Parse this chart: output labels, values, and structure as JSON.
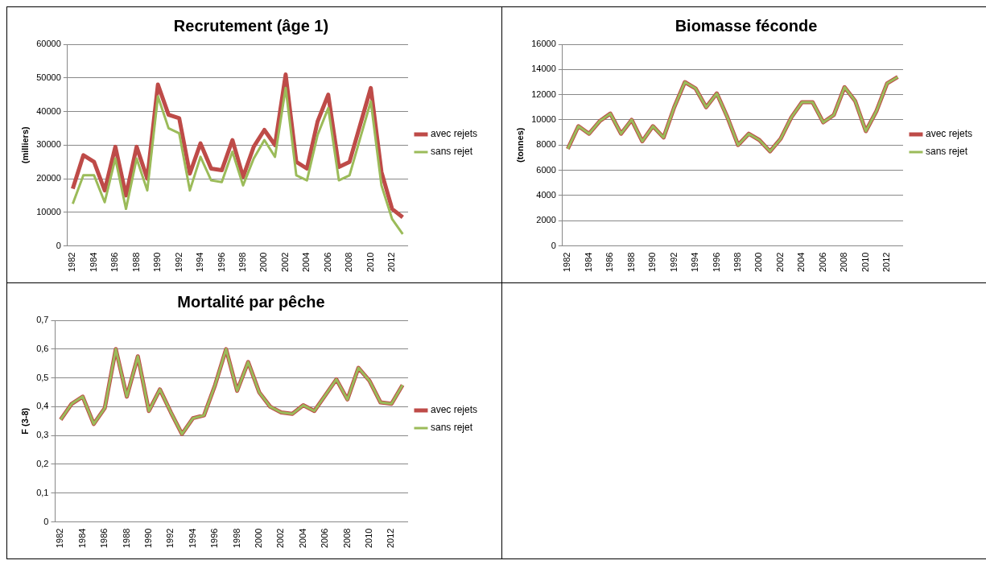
{
  "chart_data": [
    {
      "type": "line",
      "title": "Recrutement (âge 1)",
      "ylabel": "(milliers)",
      "categories": [
        "1982",
        null,
        "1984",
        null,
        "1986",
        null,
        "1988",
        null,
        "1990",
        null,
        "1992",
        null,
        "1994",
        null,
        "1996",
        null,
        "1998",
        null,
        "2000",
        null,
        "2002",
        null,
        "2004",
        null,
        "2006",
        null,
        "2008",
        null,
        "2010",
        null,
        "2012",
        null
      ],
      "series": [
        {
          "name": "avec rejets",
          "color": "#be4b48",
          "values": [
            17000,
            27000,
            25000,
            16500,
            29500,
            15000,
            29500,
            20000,
            48000,
            39000,
            38000,
            21500,
            30500,
            23000,
            22500,
            31500,
            20500,
            29500,
            34500,
            30000,
            51000,
            25000,
            23000,
            37000,
            45000,
            23500,
            25000,
            36000,
            47000,
            22000,
            11000,
            8500
          ]
        },
        {
          "name": "sans rejet",
          "color": "#9bbb59",
          "values": [
            12500,
            21000,
            21000,
            13000,
            26000,
            11000,
            26000,
            16500,
            44500,
            35000,
            33500,
            16500,
            26500,
            19500,
            19000,
            28000,
            18000,
            26000,
            31500,
            26500,
            47000,
            21000,
            19500,
            33000,
            41000,
            19500,
            21000,
            32000,
            43000,
            18000,
            8000,
            3500
          ]
        }
      ],
      "ylim": [
        0,
        60000
      ],
      "yticks": [
        0,
        10000,
        20000,
        30000,
        40000,
        50000,
        60000
      ],
      "grid": "y",
      "legend": "right",
      "marker": "none",
      "line_style": "solid"
    },
    {
      "type": "line",
      "title": "Biomasse féconde",
      "ylabel": "(tonnes)",
      "categories": [
        "1982",
        null,
        "1984",
        null,
        "1986",
        null,
        "1988",
        null,
        "1990",
        null,
        "1992",
        null,
        "1994",
        null,
        "1996",
        null,
        "1998",
        null,
        "2000",
        null,
        "2002",
        null,
        "2004",
        null,
        "2006",
        null,
        "2008",
        null,
        "2010",
        null,
        "2012",
        null
      ],
      "series": [
        {
          "name": "avec rejets",
          "color": "#be4b48",
          "values": [
            7700,
            9500,
            8900,
            9900,
            10500,
            8900,
            10000,
            8300,
            9500,
            8600,
            11000,
            13000,
            12500,
            11000,
            12100,
            10200,
            8000,
            8900,
            8400,
            7500,
            8500,
            10200,
            11400,
            11400,
            9800,
            10400,
            12600,
            11500,
            9100,
            10700,
            12900,
            13400
          ]
        },
        {
          "name": "sans rejet",
          "color": "#9bbb59",
          "values": [
            7700,
            9500,
            8900,
            9900,
            10500,
            8900,
            10000,
            8300,
            9500,
            8600,
            11000,
            13000,
            12500,
            11000,
            12100,
            10200,
            8000,
            8900,
            8400,
            7500,
            8500,
            10200,
            11400,
            11400,
            9800,
            10400,
            12600,
            11500,
            9100,
            10700,
            12900,
            13400
          ]
        }
      ],
      "ylim": [
        0,
        16000
      ],
      "yticks": [
        0,
        2000,
        4000,
        6000,
        8000,
        10000,
        12000,
        14000,
        16000
      ],
      "grid": "y",
      "legend": "right",
      "marker": "none",
      "line_style": "solid"
    },
    {
      "type": "line",
      "title": "Mortalité par pêche",
      "ylabel": "F (3-8)",
      "categories": [
        "1982",
        null,
        "1984",
        null,
        "1986",
        null,
        "1988",
        null,
        "1990",
        null,
        "1992",
        null,
        "1994",
        null,
        "1996",
        null,
        "1998",
        null,
        "2000",
        null,
        "2002",
        null,
        "2004",
        null,
        "2006",
        null,
        "2008",
        null,
        "2010",
        null,
        "2012",
        null
      ],
      "series": [
        {
          "name": "avec rejets",
          "color": "#be4b48",
          "values": [
            0.355,
            0.41,
            0.435,
            0.34,
            0.395,
            0.6,
            0.435,
            0.575,
            0.385,
            0.46,
            0.38,
            0.305,
            0.36,
            0.37,
            0.475,
            0.6,
            0.455,
            0.555,
            0.45,
            0.4,
            0.38,
            0.375,
            0.405,
            0.385,
            0.44,
            0.495,
            0.425,
            0.535,
            0.49,
            0.415,
            0.41,
            0.475
          ]
        },
        {
          "name": "sans rejet",
          "color": "#9bbb59",
          "values": [
            0.355,
            0.41,
            0.435,
            0.34,
            0.395,
            0.6,
            0.435,
            0.575,
            0.385,
            0.46,
            0.38,
            0.305,
            0.36,
            0.37,
            0.475,
            0.6,
            0.455,
            0.555,
            0.45,
            0.4,
            0.38,
            0.375,
            0.405,
            0.385,
            0.44,
            0.495,
            0.425,
            0.535,
            0.49,
            0.415,
            0.41,
            0.475
          ]
        }
      ],
      "ylim": [
        0,
        0.7
      ],
      "yticks": [
        {
          "value": 0,
          "label": "0"
        },
        {
          "value": 0.1,
          "label": "0,1"
        },
        {
          "value": 0.2,
          "label": "0,2"
        },
        {
          "value": 0.3,
          "label": "0,3"
        },
        {
          "value": 0.4,
          "label": "0,4"
        },
        {
          "value": 0.5,
          "label": "0,5"
        },
        {
          "value": 0.6,
          "label": "0,6"
        },
        {
          "value": 0.7,
          "label": "0,7"
        }
      ],
      "grid": "y",
      "legend": "right",
      "marker": "none",
      "line_style": "solid"
    }
  ]
}
